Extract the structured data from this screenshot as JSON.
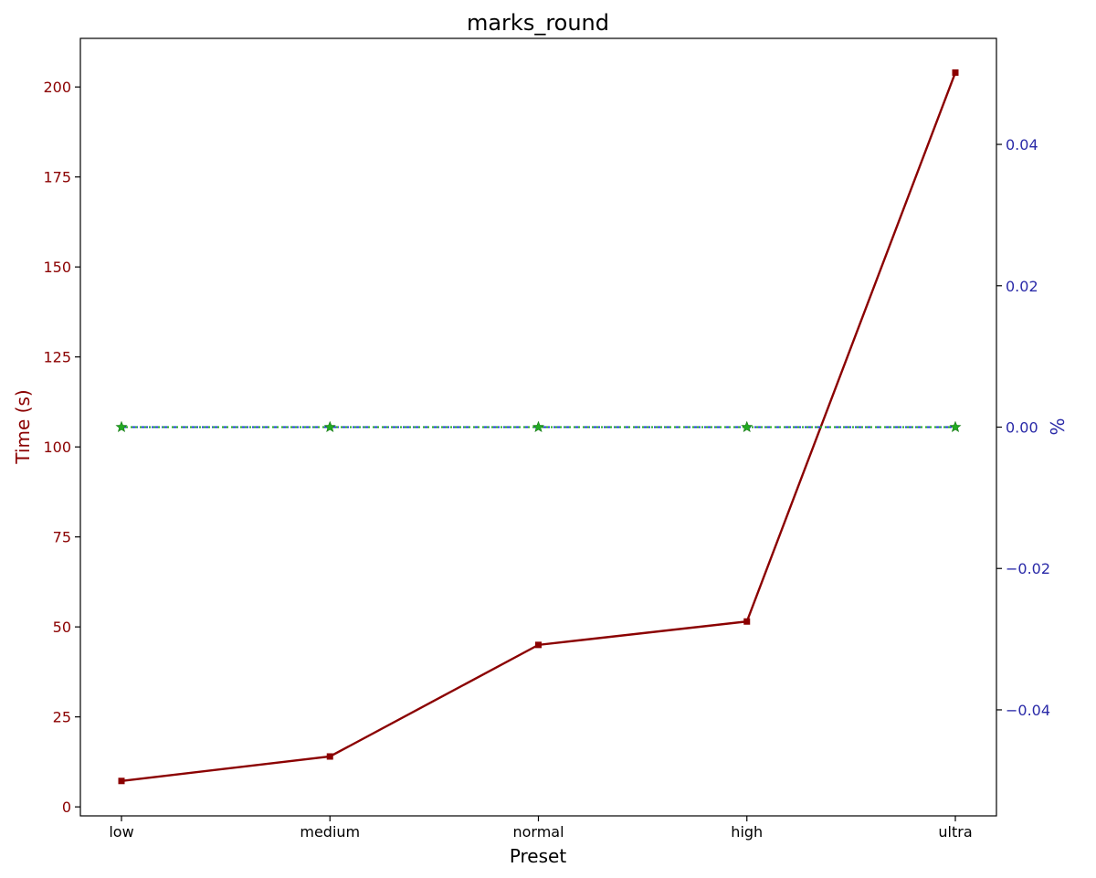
{
  "chart_data": {
    "type": "line",
    "title": "marks_round",
    "xlabel": "Preset",
    "ylabel_left": "Time (s)",
    "ylabel_right": "%",
    "categories": [
      "low",
      "medium",
      "normal",
      "high",
      "ultra"
    ],
    "y_left": {
      "lim": [
        -2.5,
        213.5
      ],
      "ticks": [
        0,
        25,
        50,
        75,
        100,
        125,
        150,
        175,
        200
      ],
      "tick_labels": [
        "0",
        "25",
        "50",
        "75",
        "100",
        "125",
        "150",
        "175",
        "200"
      ],
      "color": "#8b0000"
    },
    "y_right": {
      "lim": [
        -0.055,
        0.055
      ],
      "ticks": [
        -0.04,
        -0.02,
        0.0,
        0.02,
        0.04
      ],
      "tick_labels": [
        "−0.04",
        "−0.02",
        "0.00",
        "0.02",
        "0.04"
      ],
      "color": "#2a2aa8"
    },
    "series": [
      {
        "axis": "left",
        "values": [
          7.2,
          14,
          45,
          51.5,
          204
        ],
        "color": "#8b0000",
        "marker": "square",
        "line_style": "solid"
      },
      {
        "axis": "right",
        "values": [
          0,
          0,
          0,
          0,
          0
        ],
        "color": "#1f3fd6",
        "marker": "none",
        "line_style": "dashed"
      },
      {
        "axis": "right",
        "values": [
          0,
          0,
          0,
          0,
          0
        ],
        "color": "#22aa22",
        "marker": "star",
        "line_style": "dotted"
      }
    ],
    "grid": false,
    "legend": false
  }
}
